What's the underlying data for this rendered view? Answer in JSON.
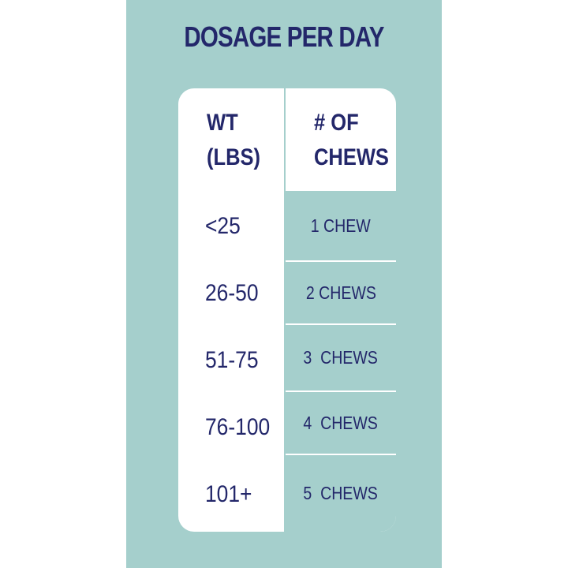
{
  "title": "DOSAGE PER DAY",
  "colors": {
    "panel_background": "#a5cfcc",
    "card_background": "#ffffff",
    "text": "#23276a"
  },
  "table": {
    "headers": {
      "weight": [
        "WT",
        "(LBS)"
      ],
      "chews": [
        "# OF",
        "CHEWS"
      ]
    },
    "rows": [
      {
        "weight": "<25",
        "chews": "1 CHEW"
      },
      {
        "weight": "26-50",
        "chews": "2 CHEWS"
      },
      {
        "weight": "51-75",
        "chews": "3  CHEWS"
      },
      {
        "weight": "76-100",
        "chews": "4  CHEWS"
      },
      {
        "weight": "101+",
        "chews": "5  CHEWS"
      }
    ]
  }
}
